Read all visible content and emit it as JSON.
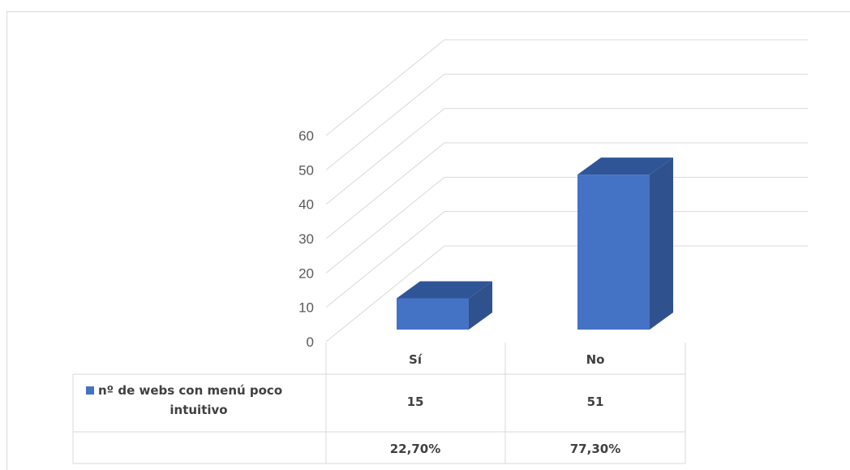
{
  "chart_data": {
    "type": "bar",
    "categories": [
      "Sí",
      "No"
    ],
    "series": [
      {
        "name": "nº de webs con menú poco intuitivo",
        "values": [
          15,
          51
        ],
        "color": "#4472c4"
      }
    ],
    "percentages": [
      "22,70%",
      "77,30%"
    ],
    "ylim": [
      0,
      60
    ],
    "yticks": [
      "0",
      "10",
      "20",
      "30",
      "40",
      "50",
      "60"
    ],
    "grid": true,
    "legend": "data-table",
    "style": "3d-column"
  },
  "table": {
    "legend_line1": "nº de webs con menú poco",
    "legend_line2": "intuitivo"
  }
}
